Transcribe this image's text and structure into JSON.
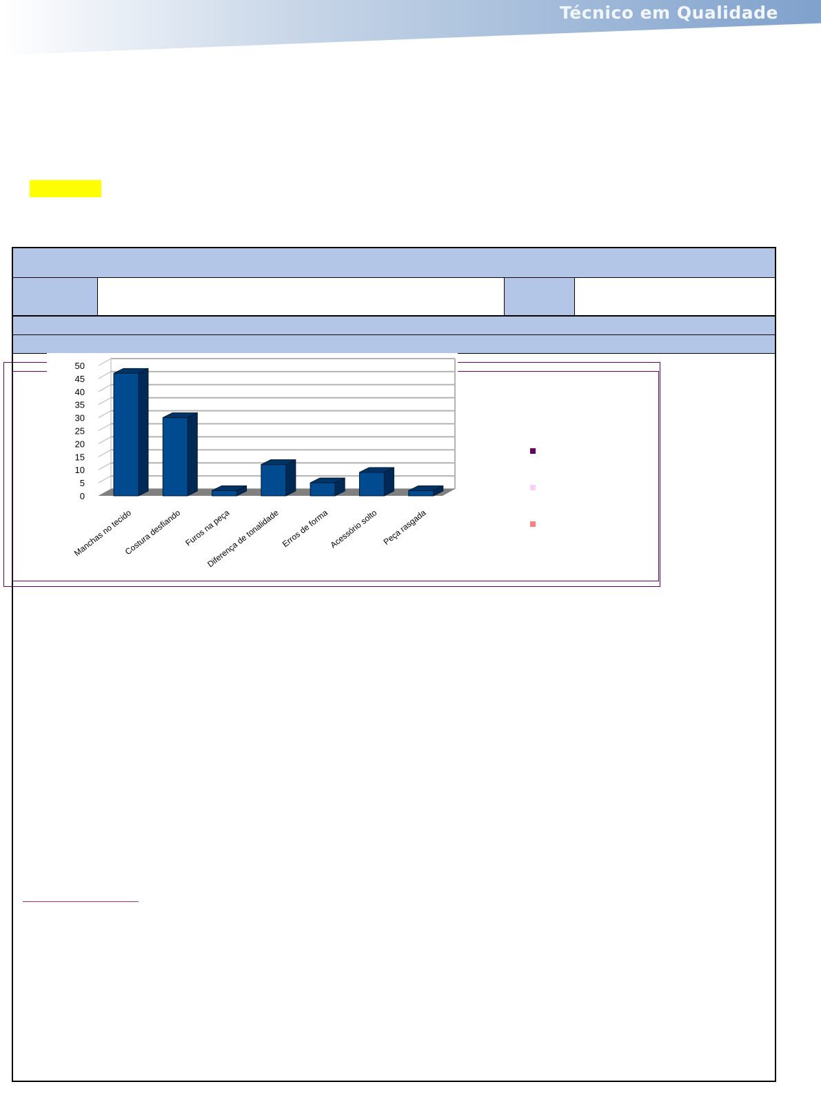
{
  "header": {
    "title": "Técnico em Qualidade"
  },
  "legend_colors": [
    "#660066",
    "#ffccff",
    "#ff8080"
  ],
  "chart_data": {
    "type": "bar",
    "categories": [
      "Manchas no tecido",
      "Costura desfiando",
      "Furos na peça",
      "Diferença de tonalidade",
      "Erros de forma",
      "Acessório solto",
      "Peça rasgada"
    ],
    "values": [
      47,
      30,
      2,
      12,
      5,
      9,
      2
    ],
    "ylim": [
      0,
      50
    ],
    "yticks": [
      0,
      5,
      10,
      15,
      20,
      25,
      30,
      35,
      40,
      45,
      50
    ],
    "grid": true,
    "bar_color": "#004a8f",
    "style": "3d"
  }
}
